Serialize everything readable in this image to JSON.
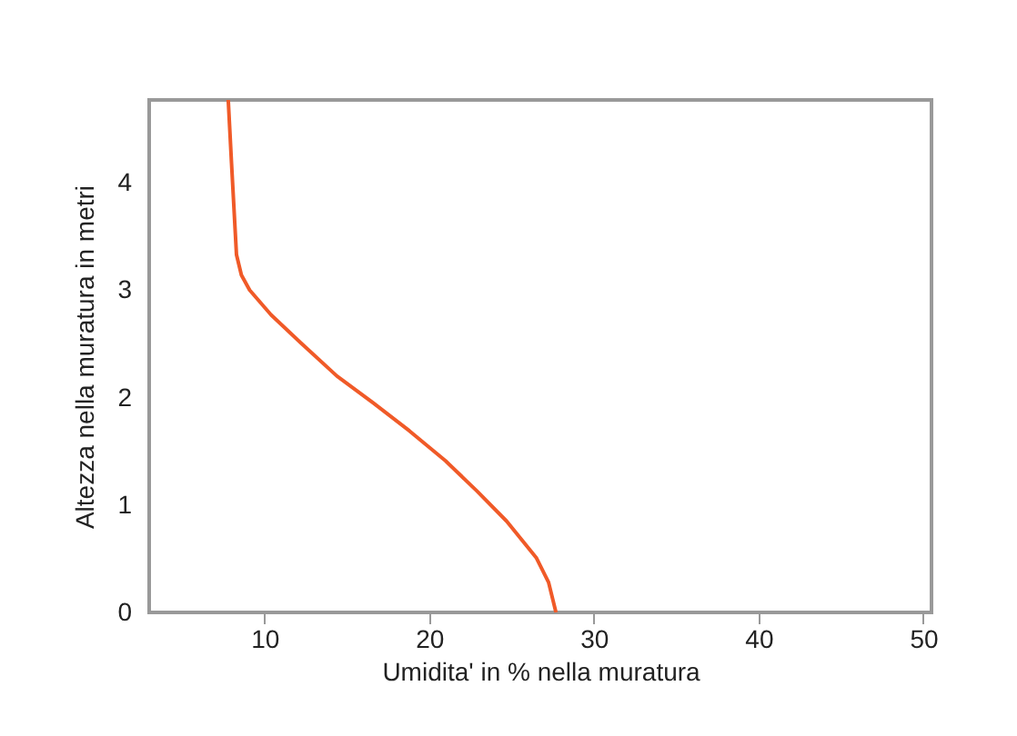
{
  "chart_data": {
    "type": "line",
    "xlabel": "Umidita' in % nella muratura",
    "ylabel": "Altezza nella muratura in metri",
    "xlim": [
      3,
      50.5
    ],
    "xticks": [
      10,
      20,
      30,
      40,
      50
    ],
    "ylim": [
      0,
      4.77
    ],
    "yticks": [
      0,
      1,
      2,
      3,
      4
    ],
    "grid": false,
    "marker": "none",
    "line_style": "solid",
    "series": [
      {
        "color": "#f05a28",
        "x": [
          27.7,
          27.25,
          26.5,
          24.7,
          22.9,
          21.0,
          18.8,
          16.6,
          14.4,
          12.2,
          10.4,
          9.1,
          8.6,
          8.3,
          8.0,
          7.8
        ],
        "values": [
          0,
          0.28,
          0.51,
          0.85,
          1.13,
          1.41,
          1.69,
          1.95,
          2.2,
          2.51,
          2.77,
          3.0,
          3.14,
          3.33,
          4.18,
          4.77
        ]
      }
    ]
  }
}
